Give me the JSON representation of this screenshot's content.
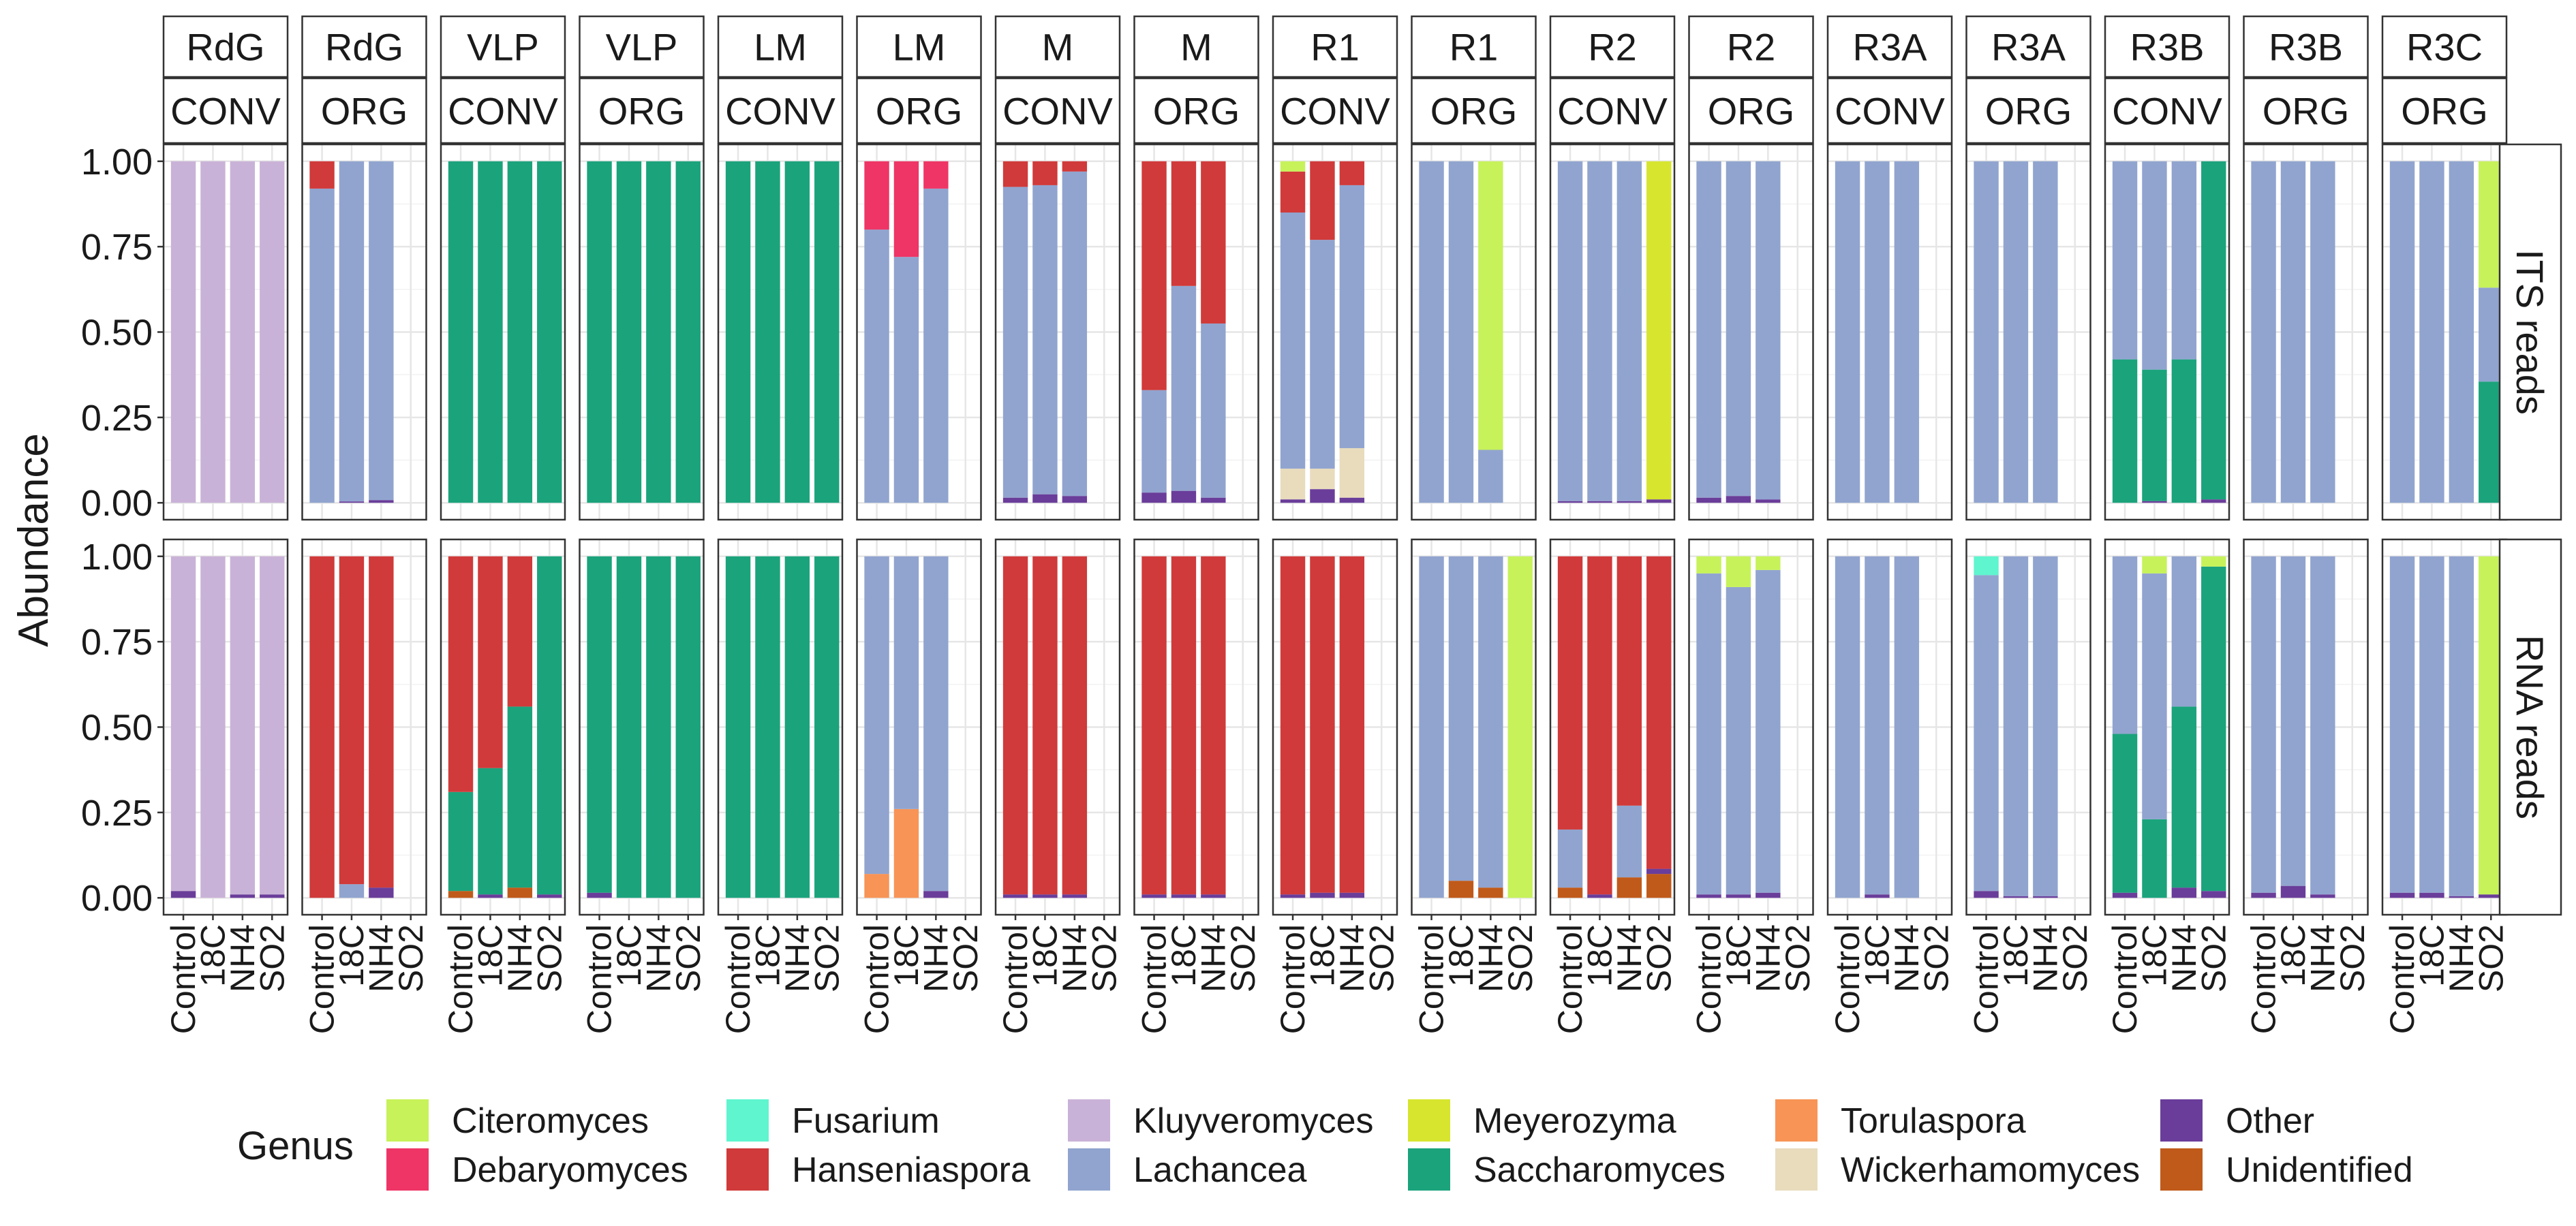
{
  "chart_data": {
    "type": "bar",
    "stacked": true,
    "ylabel": "Abundance",
    "ylim": [
      0,
      1
    ],
    "yticks": [
      "0.00",
      "0.25",
      "0.50",
      "0.75",
      "1.00"
    ],
    "grid": true,
    "legend_position": "bottom",
    "legend_title": "Genus",
    "legend": [
      {
        "name": "Citeromyces",
        "color": "#c7f25a"
      },
      {
        "name": "Debaryomyces",
        "color": "#ee3566"
      },
      {
        "name": "Fusarium",
        "color": "#5ef5cf"
      },
      {
        "name": "Hanseniaspora",
        "color": "#d03a3a"
      },
      {
        "name": "Kluyveromyces",
        "color": "#c9b2d7"
      },
      {
        "name": "Lachancea",
        "color": "#91a4cf"
      },
      {
        "name": "Meyerozyma",
        "color": "#d7e52e"
      },
      {
        "name": "Saccharomyces",
        "color": "#1ba37c"
      },
      {
        "name": "Torulaspora",
        "color": "#f79456"
      },
      {
        "name": "Wickerhamomyces",
        "color": "#e8dcbd"
      },
      {
        "name": "Other",
        "color": "#6a3d9a"
      },
      {
        "name": "Unidentified",
        "color": "#c05a1a"
      }
    ],
    "stack_order": [
      "Unidentified",
      "Other",
      "Wickerhamomyces",
      "Torulaspora",
      "Saccharomyces",
      "Lachancea",
      "Kluyveromyces",
      "Hanseniaspora",
      "Fusarium",
      "Debaryomyces",
      "Meyerozyma",
      "Citeromyces"
    ],
    "categories": [
      "Control",
      "18C",
      "NH4",
      "SO2"
    ],
    "row_labels": [
      "ITS reads",
      "RNA reads"
    ],
    "columns": [
      {
        "site": "RdG",
        "system": "CONV"
      },
      {
        "site": "RdG",
        "system": "ORG"
      },
      {
        "site": "VLP",
        "system": "CONV"
      },
      {
        "site": "VLP",
        "system": "ORG"
      },
      {
        "site": "LM",
        "system": "CONV"
      },
      {
        "site": "LM",
        "system": "ORG"
      },
      {
        "site": "M",
        "system": "CONV"
      },
      {
        "site": "M",
        "system": "ORG"
      },
      {
        "site": "R1",
        "system": "CONV"
      },
      {
        "site": "R1",
        "system": "ORG"
      },
      {
        "site": "R2",
        "system": "CONV"
      },
      {
        "site": "R2",
        "system": "ORG"
      },
      {
        "site": "R3A",
        "system": "CONV"
      },
      {
        "site": "R3A",
        "system": "ORG"
      },
      {
        "site": "R3B",
        "system": "CONV"
      },
      {
        "site": "R3B",
        "system": "ORG"
      },
      {
        "site": "R3C",
        "system": "ORG"
      }
    ],
    "panels": [
      [
        [
          {
            "Kluyveromyces": 1
          },
          {
            "Kluyveromyces": 1
          },
          {
            "Kluyveromyces": 1
          },
          {
            "Kluyveromyces": 1
          }
        ],
        [
          {
            "Lachancea": 0.92,
            "Hanseniaspora": 0.08
          },
          {
            "Other": 0.004,
            "Lachancea": 0.996
          },
          {
            "Other": 0.008,
            "Lachancea": 0.992
          },
          null
        ],
        [
          {
            "Saccharomyces": 1
          },
          {
            "Saccharomyces": 1
          },
          {
            "Saccharomyces": 1
          },
          {
            "Saccharomyces": 1
          }
        ],
        [
          {
            "Saccharomyces": 1
          },
          {
            "Saccharomyces": 1
          },
          {
            "Saccharomyces": 1
          },
          {
            "Saccharomyces": 1
          }
        ],
        [
          {
            "Saccharomyces": 1
          },
          {
            "Saccharomyces": 1
          },
          {
            "Saccharomyces": 1
          },
          {
            "Saccharomyces": 1
          }
        ],
        [
          {
            "Lachancea": 0.8,
            "Debaryomyces": 0.2
          },
          {
            "Lachancea": 0.72,
            "Debaryomyces": 0.28
          },
          {
            "Lachancea": 0.92,
            "Debaryomyces": 0.08
          },
          null
        ],
        [
          {
            "Other": 0.015,
            "Lachancea": 0.91,
            "Hanseniaspora": 0.075
          },
          {
            "Other": 0.025,
            "Lachancea": 0.905,
            "Hanseniaspora": 0.07
          },
          {
            "Other": 0.02,
            "Lachancea": 0.95,
            "Hanseniaspora": 0.03
          },
          null
        ],
        [
          {
            "Other": 0.03,
            "Lachancea": 0.3,
            "Hanseniaspora": 0.67
          },
          {
            "Other": 0.035,
            "Lachancea": 0.6,
            "Hanseniaspora": 0.365
          },
          {
            "Other": 0.015,
            "Lachancea": 0.51,
            "Hanseniaspora": 0.475
          },
          null
        ],
        [
          {
            "Other": 0.01,
            "Wickerhamomyces": 0.09,
            "Lachancea": 0.75,
            "Hanseniaspora": 0.12,
            "Citeromyces": 0.03
          },
          {
            "Other": 0.04,
            "Wickerhamomyces": 0.06,
            "Lachancea": 0.67,
            "Hanseniaspora": 0.23
          },
          {
            "Other": 0.015,
            "Wickerhamomyces": 0.145,
            "Lachancea": 0.77,
            "Hanseniaspora": 0.07
          },
          null
        ],
        [
          {
            "Lachancea": 1
          },
          {
            "Lachancea": 1
          },
          {
            "Lachancea": 0.155,
            "Citeromyces": 0.845
          },
          null
        ],
        [
          {
            "Other": 0.005,
            "Lachancea": 0.995
          },
          {
            "Other": 0.005,
            "Lachancea": 0.995
          },
          {
            "Other": 0.005,
            "Lachancea": 0.995
          },
          {
            "Other": 0.01,
            "Meyerozyma": 0.99
          }
        ],
        [
          {
            "Other": 0.015,
            "Lachancea": 0.985
          },
          {
            "Other": 0.02,
            "Lachancea": 0.98
          },
          {
            "Other": 0.01,
            "Lachancea": 0.99
          },
          null
        ],
        [
          {
            "Lachancea": 1
          },
          {
            "Lachancea": 1
          },
          {
            "Lachancea": 1
          },
          null
        ],
        [
          {
            "Lachancea": 1
          },
          {
            "Lachancea": 1
          },
          {
            "Lachancea": 1
          },
          null
        ],
        [
          {
            "Saccharomyces": 0.42,
            "Lachancea": 0.58
          },
          {
            "Other": 0.005,
            "Saccharomyces": 0.385,
            "Lachancea": 0.61
          },
          {
            "Saccharomyces": 0.42,
            "Lachancea": 0.58
          },
          {
            "Other": 0.01,
            "Saccharomyces": 0.99
          }
        ],
        [
          {
            "Lachancea": 1
          },
          {
            "Lachancea": 1
          },
          {
            "Lachancea": 1
          },
          null
        ],
        [
          {
            "Lachancea": 1
          },
          {
            "Lachancea": 1
          },
          {
            "Lachancea": 1
          },
          {
            "Saccharomyces": 0.355,
            "Lachancea": 0.275,
            "Citeromyces": 0.37
          }
        ]
      ],
      [
        [
          {
            "Other": 0.02,
            "Kluyveromyces": 0.98
          },
          {
            "Kluyveromyces": 1
          },
          {
            "Other": 0.01,
            "Kluyveromyces": 0.99
          },
          {
            "Other": 0.01,
            "Kluyveromyces": 0.99
          }
        ],
        [
          {
            "Hanseniaspora": 1
          },
          {
            "Lachancea": 0.04,
            "Hanseniaspora": 0.96
          },
          {
            "Other": 0.03,
            "Hanseniaspora": 0.97
          },
          null
        ],
        [
          {
            "Unidentified": 0.02,
            "Saccharomyces": 0.29,
            "Hanseniaspora": 0.69
          },
          {
            "Other": 0.01,
            "Saccharomyces": 0.37,
            "Hanseniaspora": 0.62
          },
          {
            "Unidentified": 0.03,
            "Saccharomyces": 0.53,
            "Hanseniaspora": 0.44
          },
          {
            "Other": 0.01,
            "Saccharomyces": 0.99
          }
        ],
        [
          {
            "Other": 0.015,
            "Saccharomyces": 0.985
          },
          {
            "Saccharomyces": 1
          },
          {
            "Saccharomyces": 1
          },
          {
            "Saccharomyces": 1
          }
        ],
        [
          {
            "Saccharomyces": 1
          },
          {
            "Saccharomyces": 1
          },
          {
            "Saccharomyces": 1
          },
          {
            "Saccharomyces": 1
          }
        ],
        [
          {
            "Torulaspora": 0.07,
            "Lachancea": 0.93
          },
          {
            "Torulaspora": 0.26,
            "Lachancea": 0.74
          },
          {
            "Other": 0.02,
            "Lachancea": 0.98
          },
          null
        ],
        [
          {
            "Other": 0.01,
            "Hanseniaspora": 0.99
          },
          {
            "Other": 0.01,
            "Hanseniaspora": 0.99
          },
          {
            "Other": 0.01,
            "Hanseniaspora": 0.99
          },
          null
        ],
        [
          {
            "Other": 0.01,
            "Hanseniaspora": 0.99
          },
          {
            "Other": 0.01,
            "Hanseniaspora": 0.99
          },
          {
            "Other": 0.01,
            "Hanseniaspora": 0.99
          },
          null
        ],
        [
          {
            "Other": 0.01,
            "Hanseniaspora": 0.99
          },
          {
            "Other": 0.015,
            "Hanseniaspora": 0.985
          },
          {
            "Other": 0.015,
            "Hanseniaspora": 0.985
          },
          null
        ],
        [
          {
            "Lachancea": 1
          },
          {
            "Unidentified": 0.05,
            "Lachancea": 0.95
          },
          {
            "Unidentified": 0.03,
            "Lachancea": 0.97
          },
          {
            "Citeromyces": 1
          }
        ],
        [
          {
            "Unidentified": 0.03,
            "Lachancea": 0.17,
            "Hanseniaspora": 0.8
          },
          {
            "Other": 0.01,
            "Hanseniaspora": 0.99
          },
          {
            "Unidentified": 0.06,
            "Lachancea": 0.21,
            "Hanseniaspora": 0.73
          },
          {
            "Unidentified": 0.07,
            "Other": 0.015,
            "Hanseniaspora": 0.915
          }
        ],
        [
          {
            "Other": 0.01,
            "Lachancea": 0.94,
            "Citeromyces": 0.05
          },
          {
            "Other": 0.01,
            "Lachancea": 0.9,
            "Citeromyces": 0.09
          },
          {
            "Other": 0.015,
            "Lachancea": 0.945,
            "Citeromyces": 0.04
          },
          null
        ],
        [
          {
            "Lachancea": 1
          },
          {
            "Other": 0.01,
            "Lachancea": 0.99
          },
          {
            "Lachancea": 1
          },
          null
        ],
        [
          {
            "Other": 0.02,
            "Lachancea": 0.925,
            "Fusarium": 0.055
          },
          {
            "Other": 0.005,
            "Lachancea": 0.995
          },
          {
            "Other": 0.005,
            "Lachancea": 0.995
          },
          null
        ],
        [
          {
            "Other": 0.015,
            "Saccharomyces": 0.465,
            "Lachancea": 0.52
          },
          {
            "Saccharomyces": 0.23,
            "Lachancea": 0.72,
            "Citeromyces": 0.05
          },
          {
            "Other": 0.03,
            "Saccharomyces": 0.53,
            "Lachancea": 0.44
          },
          {
            "Other": 0.02,
            "Saccharomyces": 0.95,
            "Citeromyces": 0.03
          }
        ],
        [
          {
            "Other": 0.015,
            "Lachancea": 0.985
          },
          {
            "Other": 0.035,
            "Lachancea": 0.965
          },
          {
            "Other": 0.01,
            "Lachancea": 0.99
          },
          null
        ],
        [
          {
            "Other": 0.015,
            "Lachancea": 0.985
          },
          {
            "Other": 0.015,
            "Lachancea": 0.985
          },
          {
            "Other": 0.005,
            "Lachancea": 0.995
          },
          {
            "Other": 0.01,
            "Citeromyces": 0.99
          }
        ]
      ]
    ]
  }
}
